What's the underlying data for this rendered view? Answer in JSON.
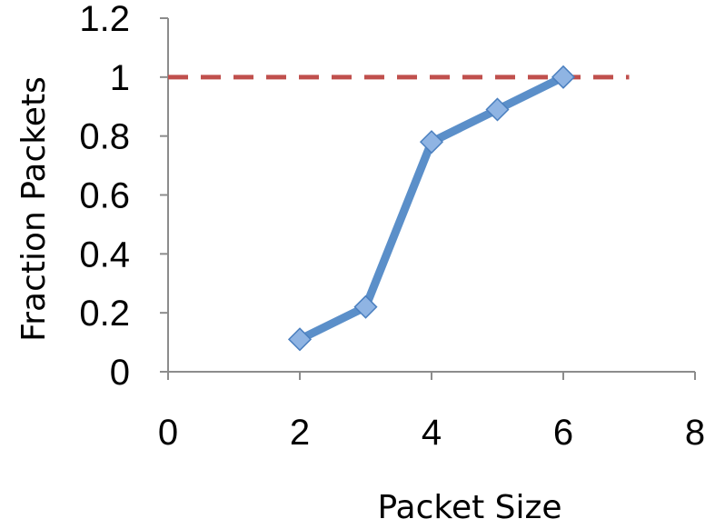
{
  "chart_data": {
    "type": "line",
    "title": "",
    "xlabel": "Packet Size",
    "ylabel": "Fraction Packets",
    "xlim": [
      0,
      8
    ],
    "ylim": [
      0,
      1.2
    ],
    "xticks": [
      0,
      2,
      4,
      6,
      8
    ],
    "xtick_labels": [
      "0",
      "2",
      "4",
      "6",
      "8"
    ],
    "yticks": [
      0,
      0.2,
      0.4,
      0.6,
      0.8,
      1,
      1.2
    ],
    "ytick_labels": [
      "0",
      "0.2",
      "0.4",
      "0.6",
      "0.8",
      "1",
      "1.2"
    ],
    "grid": false,
    "legend": "none",
    "series": [
      {
        "x": [
          2,
          3,
          4,
          5,
          6
        ],
        "y": [
          0.11,
          0.22,
          0.78,
          0.89,
          1.0
        ],
        "color": "#5b8fc9",
        "marker": "diamond",
        "marker_color": "#8fb4e3"
      }
    ],
    "reference_lines": [
      {
        "y": 1.0,
        "x_range": [
          0,
          7
        ],
        "style": "dashed",
        "color": "#c0504d"
      }
    ]
  }
}
